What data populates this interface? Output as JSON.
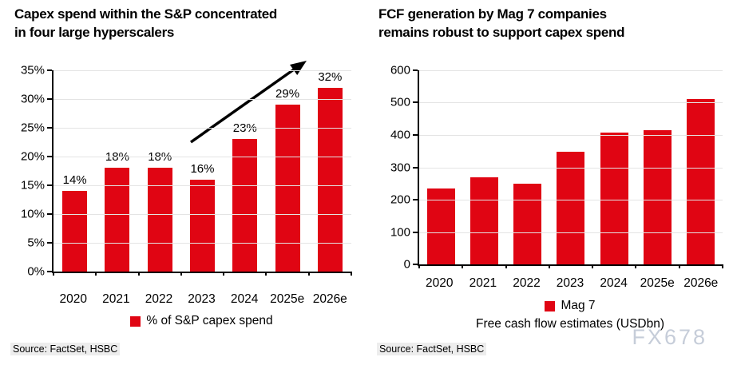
{
  "page": {
    "watermark": "FX678",
    "background": "#ffffff"
  },
  "colors": {
    "bar": "#e00513",
    "axis": "#000000",
    "gridline": "#e4e4e4",
    "arrow": "#000000",
    "watermark_text": "#c6cdd9",
    "source_bg": "#ededed"
  },
  "chart_data": [
    {
      "type": "bar",
      "title": "Capex spend within the S&P concentrated in four large hyperscalers",
      "title_lines": [
        "Capex spend within the S&P concentrated",
        "in four large hyperscalers"
      ],
      "categories": [
        "2020",
        "2021",
        "2022",
        "2023",
        "2024",
        "2025e",
        "2026e"
      ],
      "values": [
        14,
        18,
        18,
        16,
        23,
        29,
        32
      ],
      "value_labels": [
        "14%",
        "18%",
        "18%",
        "16%",
        "23%",
        "29%",
        "32%"
      ],
      "ylim": [
        0,
        35
      ],
      "y_ticks": [
        "35%",
        "30%",
        "25%",
        "20%",
        "15%",
        "10%",
        "5%",
        "0%"
      ],
      "grid": true,
      "legend": "% of S&P capex spend",
      "legend_position": "bottom",
      "annotations": [
        "upward trend arrow from 2023 toward 2026e"
      ],
      "source": "Source: FactSet, HSBC"
    },
    {
      "type": "bar",
      "title": "FCF generation by Mag 7 companies remains robust to support capex spend",
      "title_lines": [
        "FCF generation by Mag 7 companies",
        "remains robust to support capex spend"
      ],
      "categories": [
        "2020",
        "2021",
        "2022",
        "2023",
        "2024",
        "2025e",
        "2026e"
      ],
      "values": [
        235,
        268,
        250,
        347,
        407,
        415,
        510
      ],
      "ylim": [
        0,
        600
      ],
      "y_ticks": [
        "600",
        "500",
        "400",
        "300",
        "200",
        "100",
        "0"
      ],
      "grid": true,
      "legend": "Mag 7",
      "legend_position": "bottom",
      "xlabel": "Free cash flow estimates (USDbn)",
      "source": "Source: FactSet, HSBC"
    }
  ]
}
